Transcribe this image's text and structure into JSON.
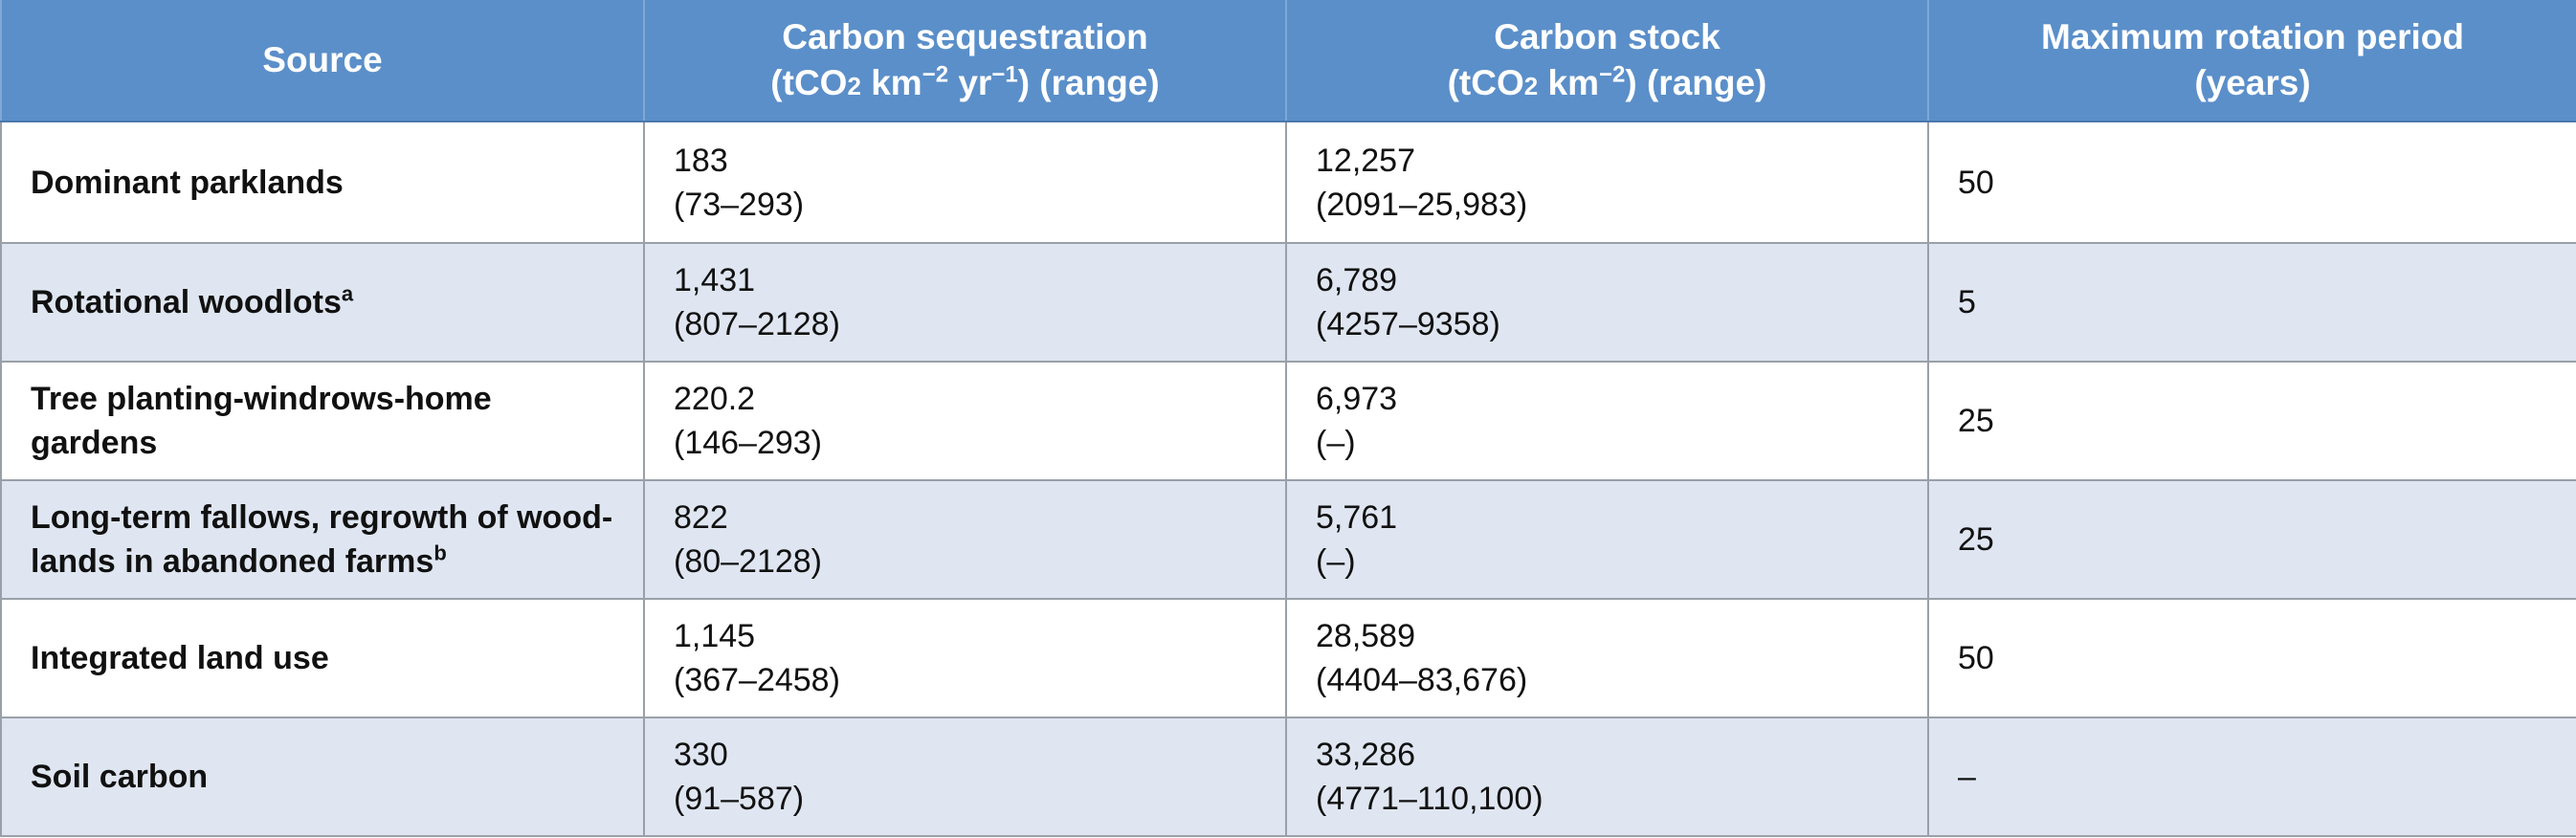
{
  "table": {
    "headers": [
      {
        "line1": "Source"
      },
      {
        "line1": "Carbon sequestration",
        "line2_pre": "(tCO",
        "line2_sub": "2",
        "line2_mid": " km",
        "line2_sup1": "−2",
        "line2_mid2": " yr",
        "line2_sup2": "−1",
        "line2_post": ") (range)"
      },
      {
        "line1": "Carbon stock",
        "line2_pre": "(tCO",
        "line2_sub": "2",
        "line2_mid": " km",
        "line2_sup1": "−2",
        "line2_post": ") (range)"
      },
      {
        "line1": "Maximum rotation period",
        "line2": "(years)"
      }
    ],
    "rows": [
      {
        "source": "Dominant parklands",
        "source_sup": "",
        "seq_value": "183",
        "seq_range": "(73–293)",
        "stock_value": "12,257",
        "stock_range": "(2091–25,983)",
        "rotation": "50"
      },
      {
        "source": "Rotational woodlots",
        "source_sup": "a",
        "seq_value": "1,431",
        "seq_range": "(807–2128)",
        "stock_value": "6,789",
        "stock_range": "(4257–9358)",
        "rotation": "5"
      },
      {
        "source": "Tree planting-windrows-home gardens",
        "source_sup": "",
        "seq_value": "220.2",
        "seq_range": "(146–293)",
        "stock_value": "6,973",
        "stock_range": "(–)",
        "rotation": "25"
      },
      {
        "source_line1": "Long-term fallows, regrowth of wood-",
        "source_line2": "lands in abandoned farms",
        "source_sup": "b",
        "seq_value": "822",
        "seq_range": "(80–2128)",
        "stock_value": "5,761",
        "stock_range": "(–)",
        "rotation": "25"
      },
      {
        "source": "Integrated land use",
        "source_sup": "",
        "seq_value": "1,145",
        "seq_range": "(367–2458)",
        "stock_value": "28,589",
        "stock_range": "(4404–83,676)",
        "rotation": "50"
      },
      {
        "source": "Soil carbon",
        "source_sup": "",
        "seq_value": "330",
        "seq_range": "(91–587)",
        "stock_value": "33,286",
        "stock_range": "(4771–110,100)",
        "rotation": "–"
      }
    ]
  }
}
